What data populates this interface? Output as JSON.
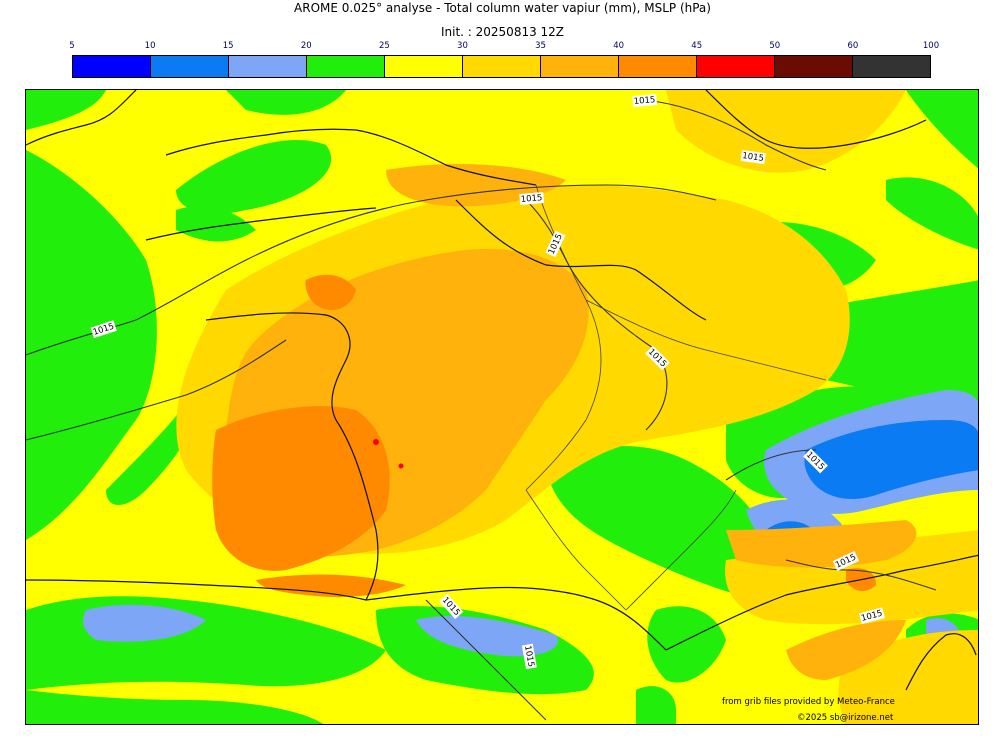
{
  "title_line1": "AROME 0.025° analyse - Total column water vapiur (mm), MSLP (hPa)",
  "title_line2": "Init. : 20250813 12Z",
  "legend": {
    "ticks": [
      "5",
      "10",
      "15",
      "20",
      "25",
      "30",
      "35",
      "40",
      "45",
      "50",
      "60",
      "100"
    ],
    "colors": [
      "#0000ff",
      "#0b7bf3",
      "#7ea6f7",
      "#22ee0b",
      "#ffff00",
      "#ffd900",
      "#ffb20c",
      "#ff8a00",
      "#ff0000",
      "#6b0c02",
      "#333333"
    ]
  },
  "isobars": [
    "1015",
    "1015",
    "1015",
    "1015",
    "1015",
    "1015",
    "1015",
    "1015",
    "1015",
    "1015",
    "1015"
  ],
  "credit_line1": "from grib files provided by Meteo-France",
  "credit_line2": "©2025 sb@irizone.net"
}
